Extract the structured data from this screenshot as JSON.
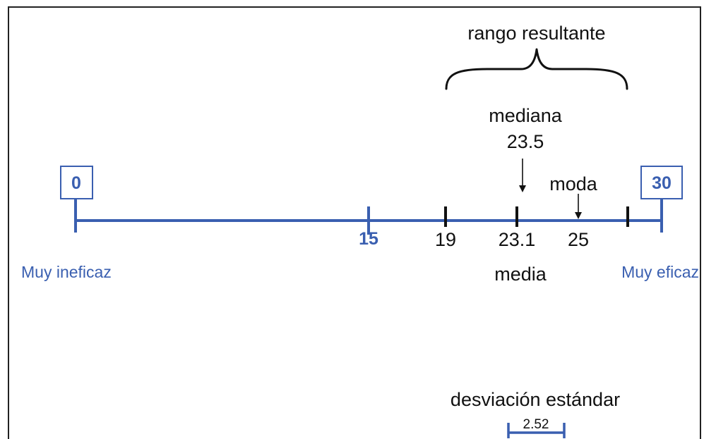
{
  "colors": {
    "blue": "#3a5fb0",
    "black": "#111111",
    "border": "#222222",
    "background": "#ffffff"
  },
  "scale": {
    "min_label": "0",
    "mid_label": "15",
    "max_label": "30",
    "left_caption": "Muy ineficaz",
    "right_caption": "Muy eficaz"
  },
  "stats": {
    "range_label": "rango resultante",
    "median_label": "mediana",
    "median_value": "23.5",
    "mode_label": "moda",
    "tick_19": "19",
    "mean_value": "23.1",
    "mode_value": "25",
    "mean_label": "media",
    "std_label": "desviación estándar",
    "std_value": "2.52"
  }
}
